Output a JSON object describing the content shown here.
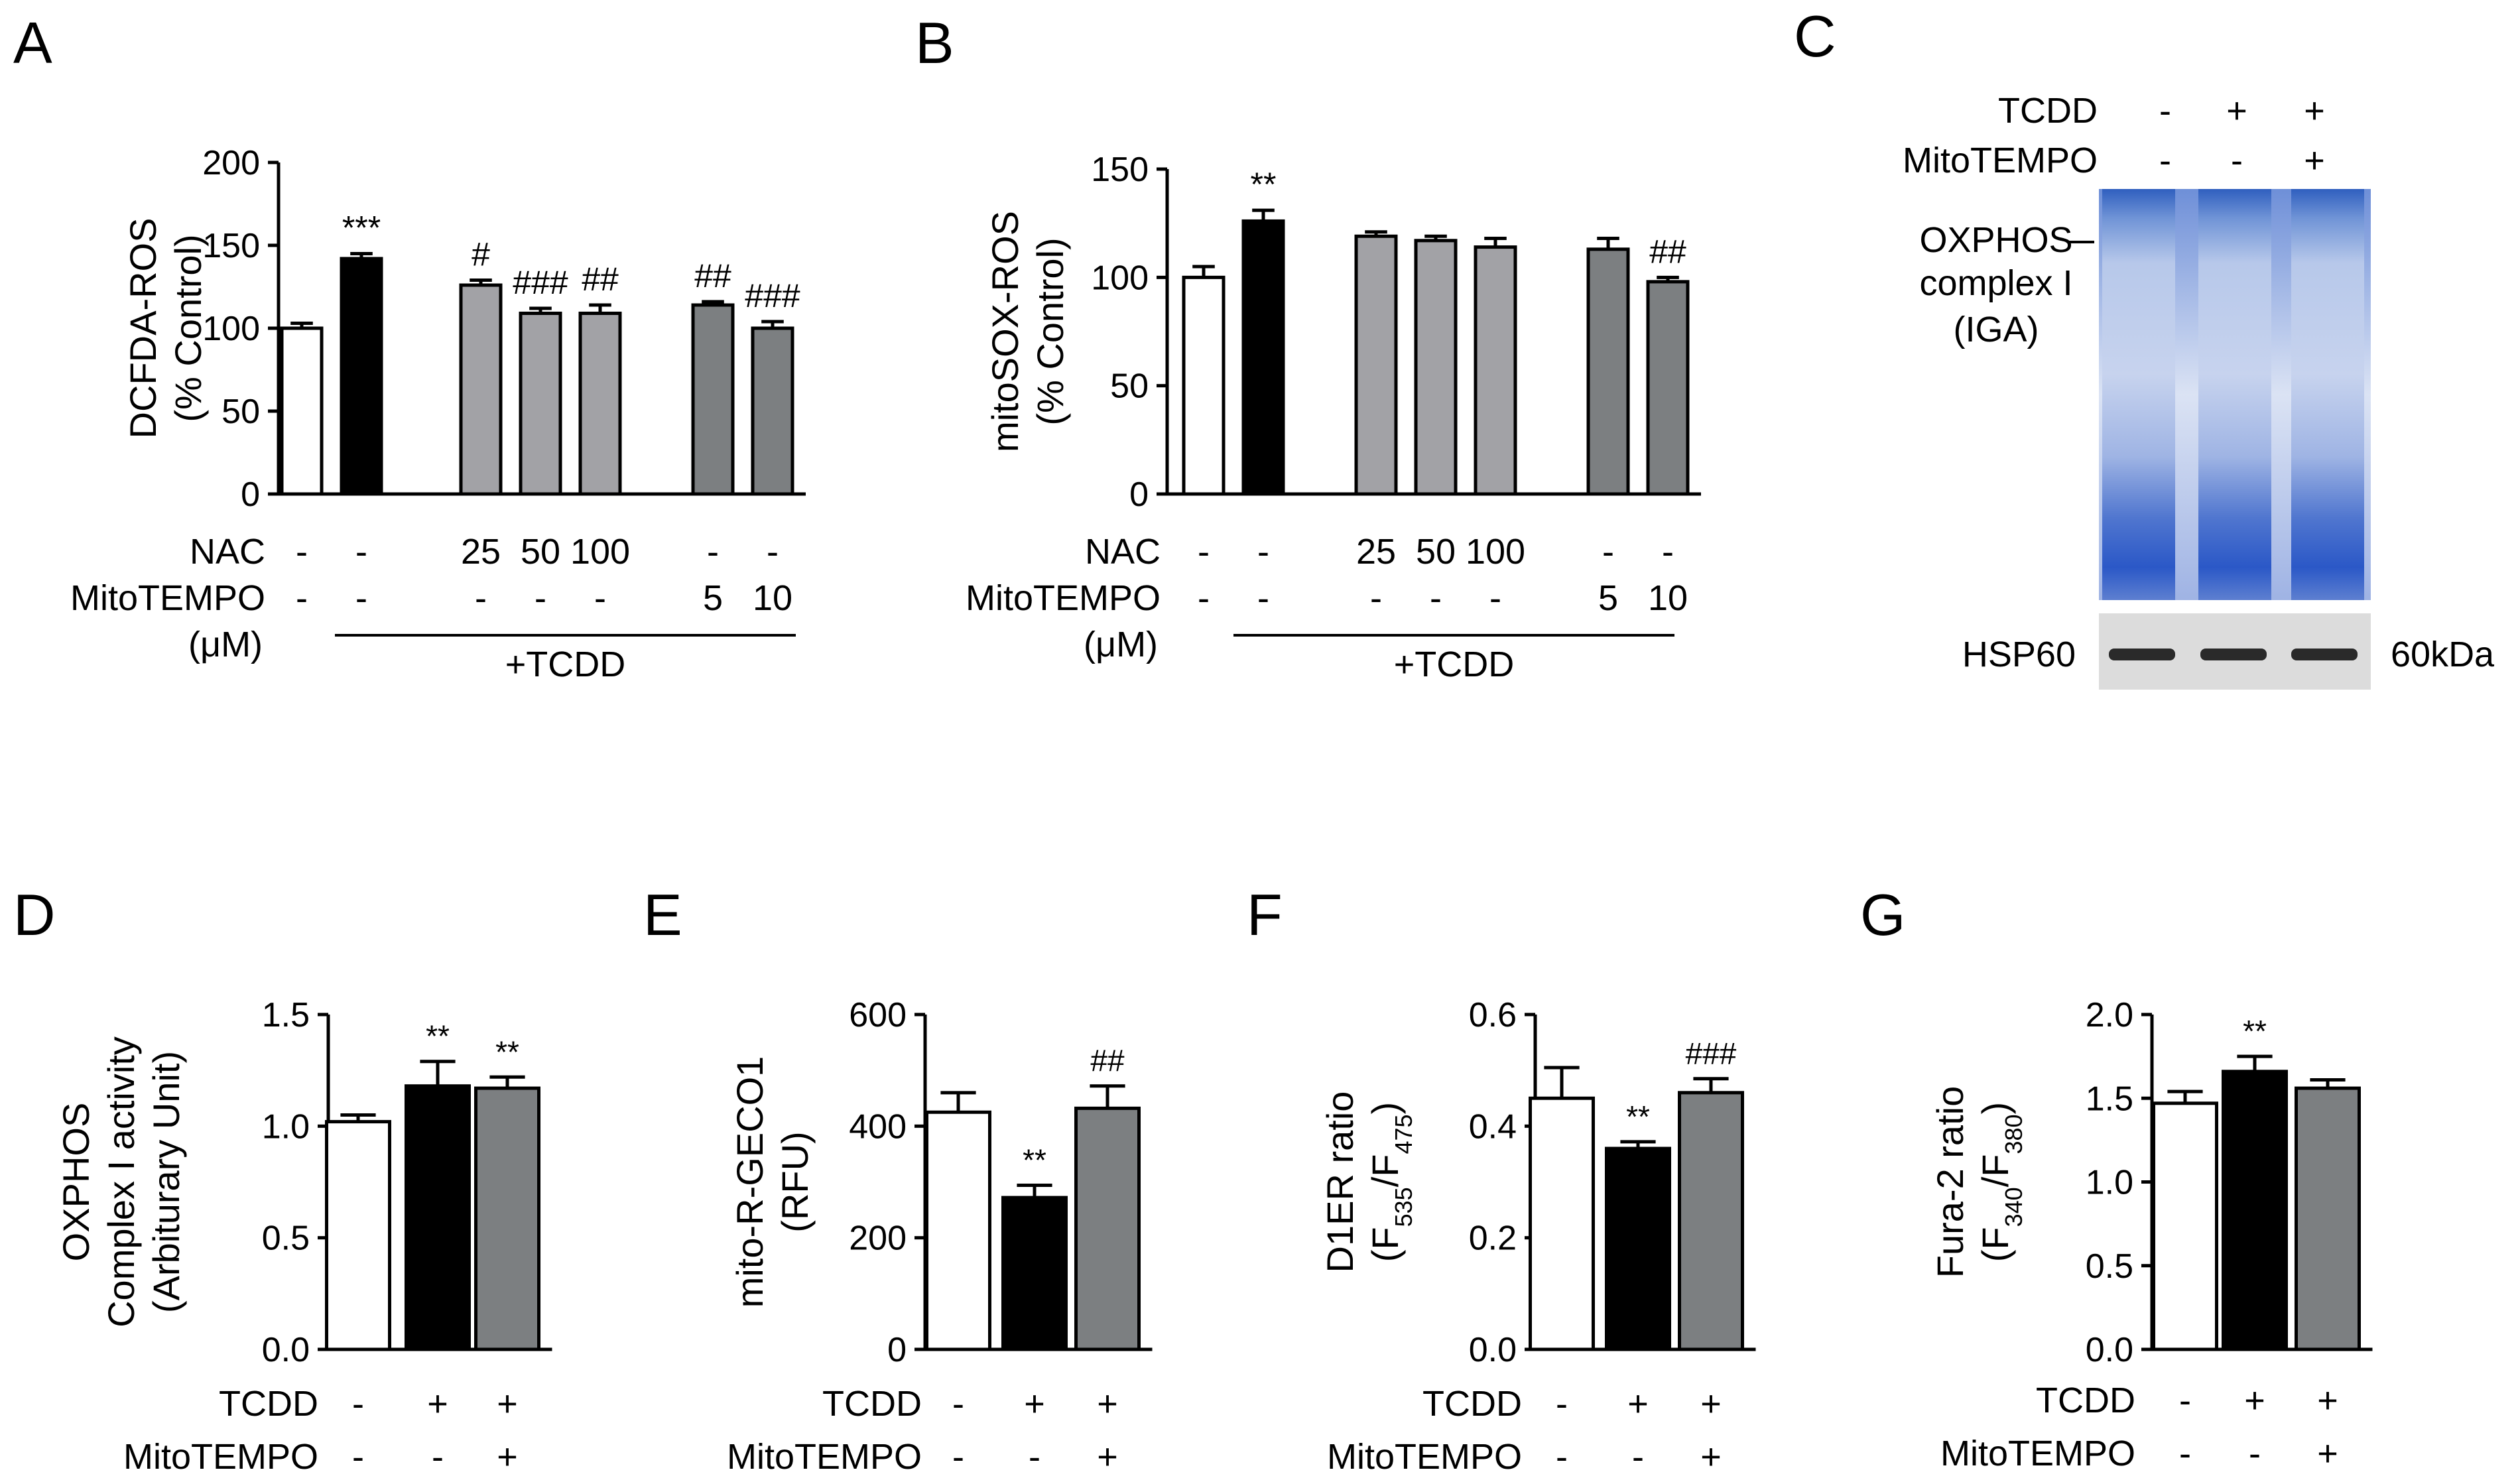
{
  "colors": {
    "white": "#ffffff",
    "black": "#000000",
    "light_gray": "#a2a2a6",
    "dark_gray": "#7c7f81"
  },
  "chart_data": [
    {
      "panel": "A",
      "type": "bar",
      "ylabel": [
        "DCFDA-ROS",
        "(% Control)"
      ],
      "ylim": [
        0,
        200
      ],
      "yticks": [
        0,
        50,
        100,
        150,
        200
      ],
      "categories": [
        "Control",
        "TCDD",
        "TCDD+NAC 25",
        "TCDD+NAC 50",
        "TCDD+NAC 100",
        "TCDD+MitoTEMPO 5",
        "TCDD+MitoTEMPO 10"
      ],
      "values": [
        100,
        142,
        126,
        109,
        109,
        114,
        100
      ],
      "errors": [
        3,
        3,
        3,
        3,
        5,
        2,
        4
      ],
      "annotations": [
        "",
        "***",
        "#",
        "###",
        "##",
        "##",
        "###"
      ],
      "fills": [
        "white",
        "black",
        "light_gray",
        "light_gray",
        "light_gray",
        "dark_gray",
        "dark_gray"
      ],
      "row_labels": [
        "NAC",
        "MitoTEMPO",
        "(μM)"
      ],
      "rows": [
        [
          "-",
          "-",
          "25",
          "50",
          "100",
          "-",
          "-"
        ],
        [
          "-",
          "-",
          "-",
          "-",
          "-",
          "5",
          "10"
        ]
      ],
      "group_label": "+TCDD"
    },
    {
      "panel": "B",
      "type": "bar",
      "ylabel": [
        "mitoSOX-ROS",
        "(% Control)"
      ],
      "ylim": [
        0,
        150
      ],
      "yticks": [
        0,
        50,
        100,
        150
      ],
      "categories": [
        "Control",
        "TCDD",
        "TCDD+NAC 25",
        "TCDD+NAC 50",
        "TCDD+NAC 100",
        "TCDD+MitoTEMPO 5",
        "TCDD+MitoTEMPO 10"
      ],
      "values": [
        100,
        126,
        119,
        117,
        114,
        113,
        98
      ],
      "errors": [
        5,
        5,
        2,
        2,
        4,
        5,
        2
      ],
      "annotations": [
        "",
        "**",
        "",
        "",
        "",
        "",
        "##"
      ],
      "fills": [
        "white",
        "black",
        "light_gray",
        "light_gray",
        "light_gray",
        "dark_gray",
        "dark_gray"
      ],
      "row_labels": [
        "NAC",
        "MitoTEMPO",
        "(μM)"
      ],
      "rows": [
        [
          "-",
          "-",
          "25",
          "50",
          "100",
          "-",
          "-"
        ],
        [
          "-",
          "-",
          "-",
          "-",
          "-",
          "5",
          "10"
        ]
      ],
      "group_label": "+TCDD"
    },
    {
      "panel": "D",
      "type": "bar",
      "ylabel": [
        "OXPHOS",
        "Complex I activity",
        "(Arbiturary Unit)"
      ],
      "ylim": [
        0,
        1.5
      ],
      "yticks": [
        "0.0",
        "0.5",
        "1.0",
        "1.5"
      ],
      "categories": [
        "Control",
        "TCDD",
        "TCDD+MitoTEMPO"
      ],
      "values": [
        1.02,
        1.18,
        1.17
      ],
      "errors": [
        0.03,
        0.11,
        0.05
      ],
      "annotations": [
        "",
        "**",
        "**"
      ],
      "fills": [
        "white",
        "black",
        "dark_gray"
      ],
      "row_labels": [
        "TCDD",
        "MitoTEMPO"
      ],
      "rows": [
        [
          "-",
          "+",
          "+"
        ],
        [
          "-",
          "-",
          "+"
        ]
      ]
    },
    {
      "panel": "E",
      "type": "bar",
      "ylabel": [
        "mito-R-GECO1",
        "(RFU)"
      ],
      "ylim": [
        0,
        600
      ],
      "yticks": [
        0,
        200,
        400,
        600
      ],
      "categories": [
        "Control",
        "TCDD",
        "TCDD+MitoTEMPO"
      ],
      "values": [
        425,
        272,
        432
      ],
      "errors": [
        35,
        22,
        40
      ],
      "annotations": [
        "",
        "**",
        "##"
      ],
      "fills": [
        "white",
        "black",
        "dark_gray"
      ],
      "row_labels": [
        "TCDD",
        "MitoTEMPO"
      ],
      "rows": [
        [
          "-",
          "+",
          "+"
        ],
        [
          "-",
          "-",
          "+"
        ]
      ]
    },
    {
      "panel": "F",
      "type": "bar",
      "ylabel": [
        "D1ER ratio",
        "(F",
        "535",
        "/F",
        "475",
        ")"
      ],
      "ylim": [
        0,
        0.6
      ],
      "yticks": [
        "0.0",
        "0.2",
        "0.4",
        "0.6"
      ],
      "categories": [
        "Control",
        "TCDD",
        "TCDD+MitoTEMPO"
      ],
      "values": [
        0.45,
        0.36,
        0.46
      ],
      "errors": [
        0.055,
        0.012,
        0.025
      ],
      "annotations": [
        "",
        "**",
        "###"
      ],
      "fills": [
        "white",
        "black",
        "dark_gray"
      ],
      "row_labels": [
        "TCDD",
        "MitoTEMPO"
      ],
      "rows": [
        [
          "-",
          "+",
          "+"
        ],
        [
          "-",
          "-",
          "+"
        ]
      ]
    },
    {
      "panel": "G",
      "type": "bar",
      "ylabel": [
        "Fura-2 ratio",
        "(F",
        "340",
        "/F",
        "380",
        ")"
      ],
      "ylim": [
        0,
        2.0
      ],
      "yticks": [
        "0.0",
        "0.5",
        "1.0",
        "1.5",
        "2.0"
      ],
      "categories": [
        "Control",
        "TCDD",
        "TCDD+MitoTEMPO"
      ],
      "values": [
        1.47,
        1.66,
        1.56
      ],
      "errors": [
        0.07,
        0.09,
        0.05
      ],
      "annotations": [
        "",
        "**",
        ""
      ],
      "fills": [
        "white",
        "black",
        "dark_gray"
      ],
      "row_labels": [
        "TCDD",
        "MitoTEMPO"
      ],
      "rows": [
        [
          "-",
          "+",
          "+"
        ],
        [
          "-",
          "-",
          "+"
        ]
      ]
    }
  ],
  "panel_c": {
    "letter": "C",
    "row_labels": [
      "TCDD",
      "MitoTEMPO"
    ],
    "rows": [
      [
        "-",
        "+",
        "+"
      ],
      [
        "-",
        "-",
        "+"
      ]
    ],
    "band_label": [
      "OXPHOS",
      "complex I",
      "(IGA)"
    ],
    "loading_label": "HSP60",
    "size_label": "60kDa"
  }
}
